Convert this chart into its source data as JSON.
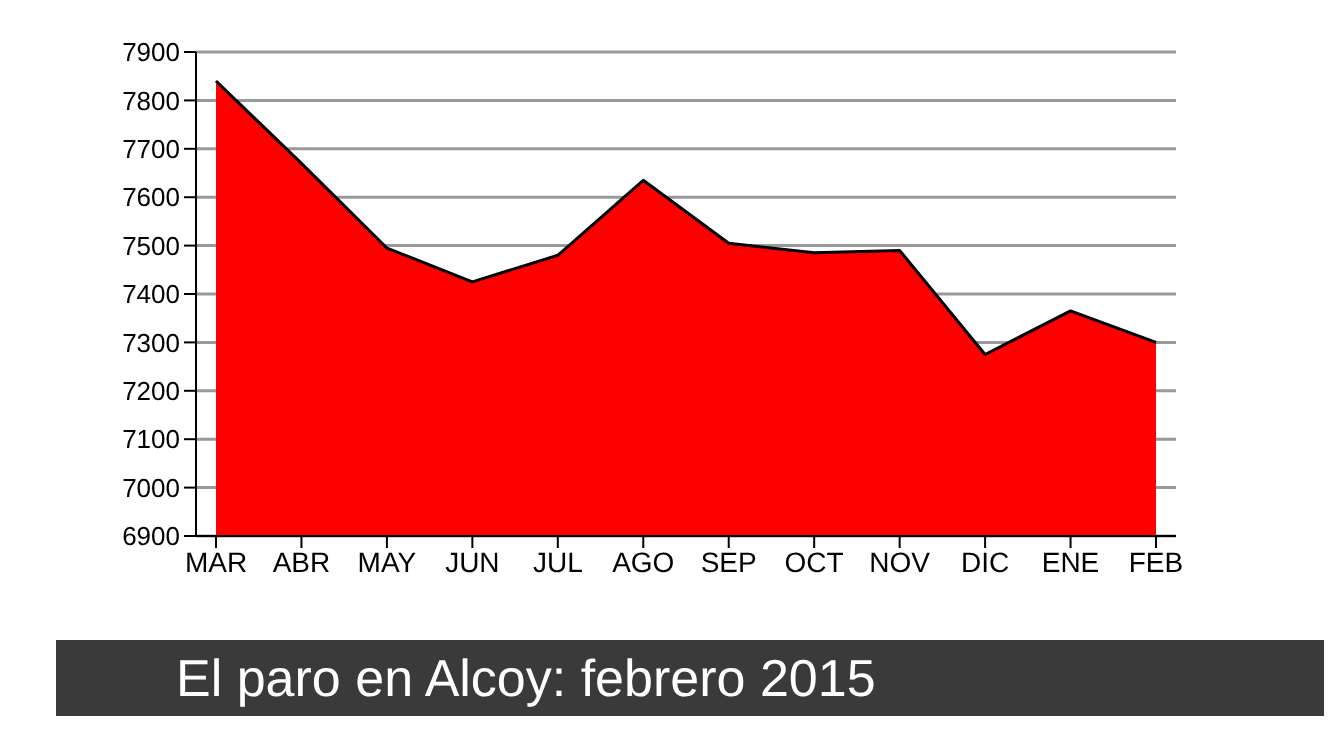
{
  "chart_data": {
    "type": "area",
    "title": "El paro en Alcoy: febrero 2015",
    "categories": [
      "MAR",
      "ABR",
      "MAY",
      "JUN",
      "JUL",
      "AGO",
      "SEP",
      "OCT",
      "NOV",
      "DIC",
      "ENE",
      "FEB"
    ],
    "values": [
      7840,
      7670,
      7495,
      7425,
      7480,
      7635,
      7505,
      7485,
      7490,
      7275,
      7365,
      7300
    ],
    "color": "#ff0000",
    "ylim": [
      6900,
      7900
    ],
    "yticks": [
      6900,
      7000,
      7100,
      7200,
      7300,
      7400,
      7500,
      7600,
      7700,
      7800,
      7900
    ],
    "grid": "y"
  }
}
